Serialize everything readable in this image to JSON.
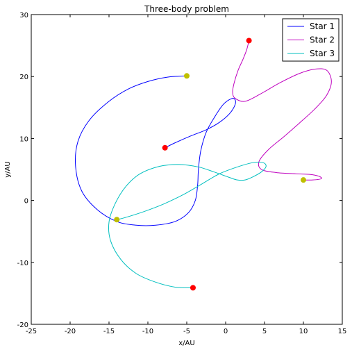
{
  "chart_data": {
    "type": "line",
    "title": "Three-body problem",
    "xlabel": "x/AU",
    "ylabel": "y/AU",
    "xlim": [
      -25,
      15
    ],
    "ylim": [
      -20,
      30
    ],
    "xticks": [
      -25,
      -20,
      -15,
      -10,
      -5,
      0,
      5,
      10,
      15
    ],
    "yticks": [
      -20,
      -10,
      0,
      10,
      20,
      30
    ],
    "grid": false,
    "legend_position": "top-right",
    "series": [
      {
        "name": "Star 1",
        "color": "#0000ff",
        "points": [
          [
            -7.8,
            8.5
          ],
          [
            -6.5,
            9.3
          ],
          [
            -4.5,
            10.4
          ],
          [
            -2.5,
            11.4
          ],
          [
            -0.8,
            12.6
          ],
          [
            0.5,
            14.0
          ],
          [
            1.2,
            15.4
          ],
          [
            1.2,
            16.3
          ],
          [
            0.7,
            16.4
          ],
          [
            -0.3,
            15.5
          ],
          [
            -1.4,
            13.5
          ],
          [
            -2.5,
            11.0
          ],
          [
            -3.2,
            8.0
          ],
          [
            -3.5,
            5.0
          ],
          [
            -3.6,
            2.5
          ],
          [
            -3.9,
            0.0
          ],
          [
            -4.8,
            -2.0
          ],
          [
            -6.5,
            -3.4
          ],
          [
            -9.0,
            -4.0
          ],
          [
            -11.5,
            -4.0
          ],
          [
            -14.0,
            -3.4
          ],
          [
            -16.5,
            -1.5
          ],
          [
            -18.5,
            1.5
          ],
          [
            -19.3,
            5.5
          ],
          [
            -19.0,
            9.5
          ],
          [
            -17.5,
            13.0
          ],
          [
            -15.0,
            16.0
          ],
          [
            -12.5,
            18.0
          ],
          [
            -10.0,
            19.2
          ],
          [
            -7.5,
            19.9
          ],
          [
            -5.0,
            20.1
          ]
        ],
        "start": [
          -7.8,
          8.5
        ],
        "end": [
          -5.0,
          20.1
        ]
      },
      {
        "name": "Star 2",
        "color": "#bf00bf",
        "points": [
          [
            3.0,
            25.8
          ],
          [
            2.7,
            24.3
          ],
          [
            2.2,
            22.7
          ],
          [
            1.6,
            21.0
          ],
          [
            1.1,
            19.0
          ],
          [
            0.9,
            17.5
          ],
          [
            1.2,
            16.5
          ],
          [
            2.5,
            16.0
          ],
          [
            4.5,
            17.2
          ],
          [
            7.0,
            19.0
          ],
          [
            9.5,
            20.5
          ],
          [
            11.5,
            21.2
          ],
          [
            13.0,
            21.0
          ],
          [
            13.6,
            19.2
          ],
          [
            13.0,
            17.0
          ],
          [
            11.5,
            14.8
          ],
          [
            9.5,
            12.5
          ],
          [
            7.5,
            10.3
          ],
          [
            5.5,
            8.2
          ],
          [
            4.3,
            6.3
          ],
          [
            4.6,
            5.0
          ],
          [
            6.5,
            4.5
          ],
          [
            9.0,
            4.3
          ],
          [
            10.8,
            4.2
          ],
          [
            12.0,
            3.9
          ],
          [
            12.3,
            3.5
          ],
          [
            11.2,
            3.3
          ],
          [
            10.0,
            3.3
          ]
        ],
        "start": [
          3.0,
          25.8
        ],
        "end": [
          10.0,
          3.3
        ]
      },
      {
        "name": "Star 3",
        "color": "#00bfbf",
        "points": [
          [
            -4.2,
            -14.1
          ],
          [
            -6.5,
            -14.0
          ],
          [
            -9.0,
            -13.2
          ],
          [
            -11.5,
            -11.8
          ],
          [
            -13.5,
            -9.5
          ],
          [
            -14.8,
            -6.5
          ],
          [
            -15.0,
            -3.5
          ],
          [
            -14.2,
            -0.5
          ],
          [
            -12.8,
            2.3
          ],
          [
            -11.0,
            4.3
          ],
          [
            -8.5,
            5.5
          ],
          [
            -6.0,
            5.8
          ],
          [
            -3.5,
            5.4
          ],
          [
            -1.5,
            4.6
          ],
          [
            0.5,
            3.7
          ],
          [
            1.5,
            3.3
          ],
          [
            2.5,
            3.3
          ],
          [
            3.5,
            3.8
          ],
          [
            4.6,
            4.6
          ],
          [
            5.2,
            5.5
          ],
          [
            4.8,
            6.1
          ],
          [
            3.5,
            6.1
          ],
          [
            1.5,
            5.4
          ],
          [
            -0.8,
            4.3
          ],
          [
            -3.0,
            2.7
          ],
          [
            -5.5,
            0.9
          ],
          [
            -8.0,
            -0.6
          ],
          [
            -10.5,
            -1.8
          ],
          [
            -13.0,
            -2.8
          ],
          [
            -14.0,
            -3.1
          ]
        ],
        "start": [
          -4.2,
          -14.1
        ],
        "end": [
          -14.0,
          -3.1
        ]
      }
    ],
    "start_marker_color": "#ff0000",
    "end_marker_color": "#bfbf00"
  }
}
